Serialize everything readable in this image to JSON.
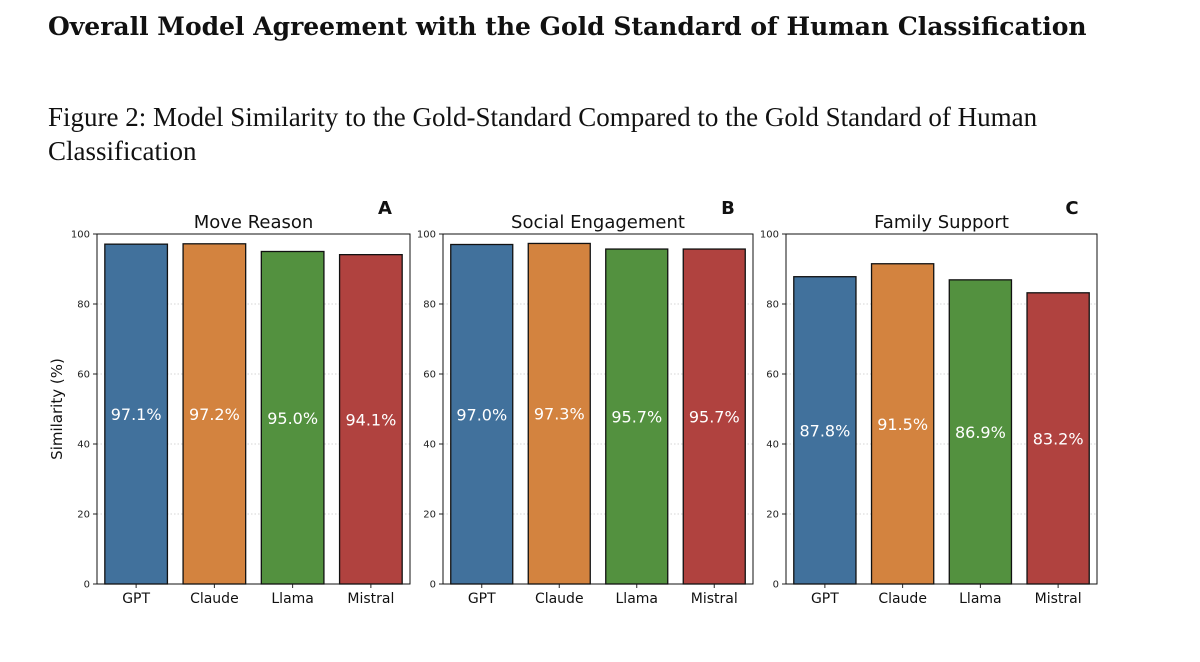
{
  "section_title": "Overall Model Agreement with the Gold Standard of Human Classification",
  "figure_caption": "Figure 2: Model Similarity to the Gold-Standard Compared to the Gold Standard of Human Classification",
  "chart_data": [
    {
      "type": "bar",
      "panel_label": "A",
      "title": "Move Reason",
      "categories": [
        "GPT",
        "Claude",
        "Llama",
        "Mistral"
      ],
      "values": [
        97.1,
        97.2,
        95.0,
        94.1
      ],
      "value_labels": [
        "97.1%",
        "97.2%",
        "95.0%",
        "94.1%"
      ],
      "colors": [
        "#41719c",
        "#d3833f",
        "#53913f",
        "#b0423f"
      ],
      "xlabel": "",
      "ylabel": "Similarity (%)",
      "ylim": [
        0,
        100
      ],
      "yticks": [
        0,
        20,
        40,
        60,
        80,
        100
      ],
      "grid": "dotted horizontal"
    },
    {
      "type": "bar",
      "panel_label": "B",
      "title": "Social Engagement",
      "categories": [
        "GPT",
        "Claude",
        "Llama",
        "Mistral"
      ],
      "values": [
        97.0,
        97.3,
        95.7,
        95.7
      ],
      "value_labels": [
        "97.0%",
        "97.3%",
        "95.7%",
        "95.7%"
      ],
      "colors": [
        "#41719c",
        "#d3833f",
        "#53913f",
        "#b0423f"
      ],
      "xlabel": "",
      "ylabel": "",
      "ylim": [
        0,
        100
      ],
      "yticks": [
        0,
        20,
        40,
        60,
        80,
        100
      ],
      "grid": "dotted horizontal"
    },
    {
      "type": "bar",
      "panel_label": "C",
      "title": "Family Support",
      "categories": [
        "GPT",
        "Claude",
        "Llama",
        "Mistral"
      ],
      "values": [
        87.8,
        91.5,
        86.9,
        83.2
      ],
      "value_labels": [
        "87.8%",
        "91.5%",
        "86.9%",
        "83.2%"
      ],
      "colors": [
        "#41719c",
        "#d3833f",
        "#53913f",
        "#b0423f"
      ],
      "xlabel": "",
      "ylabel": "",
      "ylim": [
        0,
        100
      ],
      "yticks": [
        0,
        20,
        40,
        60,
        80,
        100
      ],
      "grid": "dotted horizontal"
    }
  ]
}
